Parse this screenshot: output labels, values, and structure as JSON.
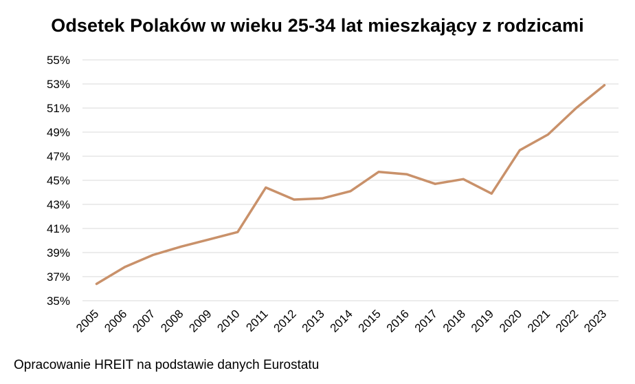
{
  "chart": {
    "title": "Odsetek Polaków w wieku 25-34 lat mieszkający z rodzicami",
    "source": "Opracowanie HREIT na podstawie danych Eurostatu"
  },
  "chart_data": {
    "type": "line",
    "title": "Odsetek Polaków w wieku 25-34 lat mieszkający z rodzicami",
    "xlabel": "",
    "ylabel": "",
    "x": [
      "2005",
      "2006",
      "2007",
      "2008",
      "2009",
      "2010",
      "2011",
      "2012",
      "2013",
      "2014",
      "2015",
      "2016",
      "2017",
      "2018",
      "2019",
      "2020",
      "2021",
      "2022",
      "2023"
    ],
    "series": [
      {
        "values": [
          36.4,
          37.8,
          38.8,
          39.5,
          40.1,
          40.7,
          44.4,
          43.4,
          43.5,
          44.1,
          45.7,
          45.5,
          44.7,
          45.1,
          43.9,
          47.5,
          48.8,
          51.0,
          52.9
        ]
      }
    ],
    "ylim": [
      35,
      55
    ],
    "yticks": [
      "35%",
      "37%",
      "39%",
      "41%",
      "43%",
      "45%",
      "47%",
      "49%",
      "51%",
      "53%",
      "55%"
    ],
    "grid": true,
    "legend": "none",
    "line_color": "#C9916A",
    "grid_color": "#D9D9D9"
  }
}
